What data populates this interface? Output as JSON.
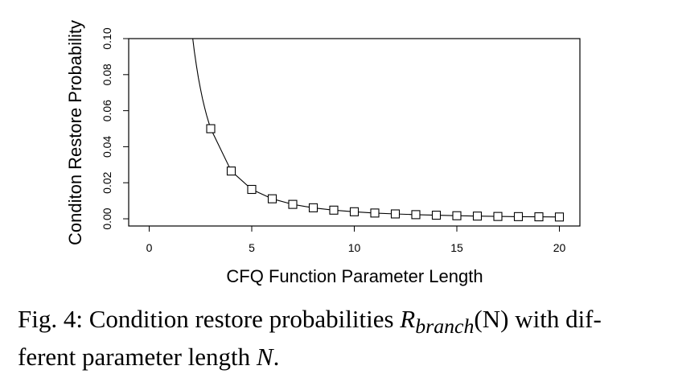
{
  "chart_data": {
    "type": "line",
    "xlabel": "CFQ Function Parameter Length",
    "ylabel": "Conditon Restore Probability",
    "xlim": [
      -1,
      21
    ],
    "ylim": [
      -0.004,
      0.1
    ],
    "x_ticks": [
      "0",
      "5",
      "10",
      "15",
      "20"
    ],
    "y_ticks": [
      "0.00",
      "0.02",
      "0.04",
      "0.06",
      "0.08",
      "0.10"
    ],
    "marker": "open-square",
    "grid": false,
    "series": [
      {
        "x": [
          3,
          4,
          5,
          6,
          7,
          8,
          9,
          10,
          11,
          12,
          13,
          14,
          15,
          16,
          17,
          18,
          19,
          20
        ],
        "values": [
          0.05,
          0.0265,
          0.0163,
          0.0111,
          0.008,
          0.0061,
          0.0048,
          0.0039,
          0.0032,
          0.0027,
          0.0023,
          0.002,
          0.0017,
          0.0015,
          0.0013,
          0.0012,
          0.0011,
          0.001
        ]
      }
    ]
  },
  "caption": {
    "prefix": "Fig. 4: Condition restore probabilities ",
    "math_symbol": "R",
    "math_subscript": "branch",
    "math_arg": "(N)",
    "suffix_line1": " with dif-",
    "line2_prefix": "ferent parameter length ",
    "line2_math": "N",
    "line2_suffix": "."
  }
}
